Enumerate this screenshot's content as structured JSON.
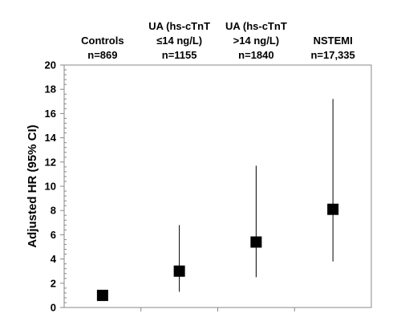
{
  "chart_data": {
    "type": "scatter",
    "ylabel": "Adjusted HR (95% CI)",
    "ylim": [
      0,
      20
    ],
    "yticks": [
      "0",
      "2",
      "4",
      "6",
      "8",
      "10",
      "12",
      "14",
      "16",
      "18",
      "20"
    ],
    "grid": false,
    "points": [
      {
        "label_lines": [
          "Controls",
          "n=869"
        ],
        "value": 1.0,
        "ci_low": null,
        "ci_high": null
      },
      {
        "label_lines": [
          "UA (hs-cTnT",
          "≤14 ng/L)",
          "n=1155"
        ],
        "value": 3.0,
        "ci_low": 1.3,
        "ci_high": 6.8
      },
      {
        "label_lines": [
          "UA (hs-cTnT",
          ">14 ng/L)",
          "n=1840"
        ],
        "value": 5.4,
        "ci_low": 2.5,
        "ci_high": 11.7
      },
      {
        "label_lines": [
          "NSTEMI",
          "n=17,335"
        ],
        "value": 8.1,
        "ci_low": 3.8,
        "ci_high": 17.2
      }
    ],
    "colors": {
      "marker": "#000000",
      "axis": "#888888",
      "frame": "#888888"
    }
  }
}
